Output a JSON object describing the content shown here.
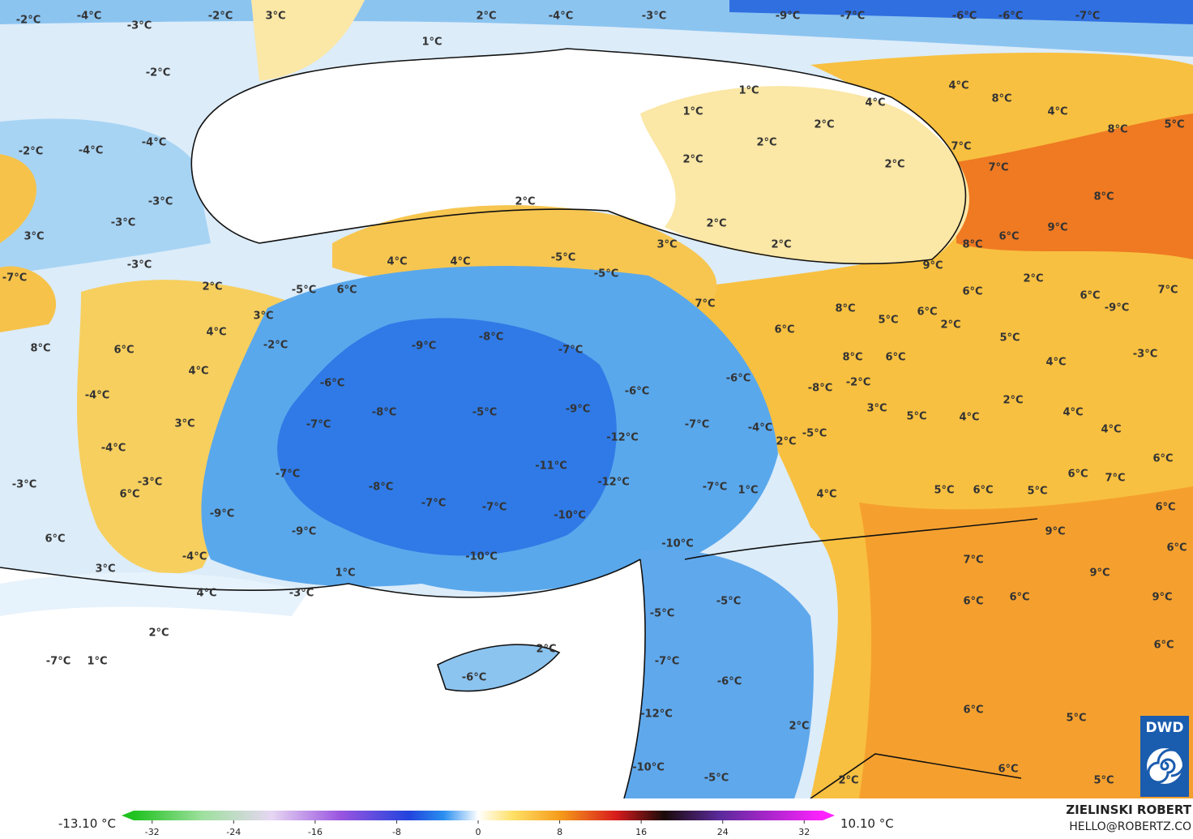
{
  "map": {
    "labels": [
      "-2°C",
      "-4°C",
      "-3°C",
      "-2°C",
      "3°C",
      "2°C",
      "1°C",
      "-4°C",
      "-3°C",
      "-9°C",
      "-7°C",
      "-6°C",
      "-6°C",
      "-7°C",
      "-2°C",
      "1°C",
      "1°C",
      "2°C",
      "2°C",
      "2°C",
      "2°C",
      "2°C",
      "2°C",
      "2°C",
      "3°C",
      "4°C",
      "4°C",
      "8°C",
      "4°C",
      "8°C",
      "5°C",
      "7°C",
      "7°C",
      "8°C",
      "9°C",
      "8°C",
      "6°C",
      "9°C",
      "2°C",
      "6°C",
      "6°C",
      "7°C",
      "-2°C",
      "-4°C",
      "-4°C",
      "-3°C",
      "-3°C",
      "3°C",
      "-3°C",
      "-7°C",
      "2°C",
      "-5°C",
      "6°C",
      "4°C",
      "4°C",
      "-5°C",
      "-5°C",
      "7°C",
      "3°C",
      "4°C",
      "6°C",
      "-2°C",
      "8°C",
      "4°C",
      "-4°C",
      "3°C",
      "-4°C",
      "-3°C",
      "-3°C",
      "6°C",
      "6°C",
      "-9°C",
      "-7°C",
      "-7°C",
      "-6°C",
      "-8°C",
      "-9°C",
      "-8°C",
      "-7°C",
      "-6°C",
      "-6°C",
      "-9°C",
      "-5°C",
      "-7°C",
      "-12°C",
      "-11°C",
      "-12°C",
      "-8°C",
      "-7°C",
      "-7°C",
      "-10°C",
      "-9°C",
      "-7°C",
      "1°C",
      "-4°C",
      "2°C",
      "-5°C",
      "4°C",
      "-10°C",
      "-10°C",
      "-4°C",
      "3°C",
      "1°C",
      "-3°C",
      "4°C",
      "2°C",
      "6°C",
      "8°C",
      "5°C",
      "6°C",
      "2°C",
      "5°C",
      "-9°C",
      "8°C",
      "6°C",
      "-2°C",
      "-8°C",
      "4°C",
      "-3°C",
      "3°C",
      "5°C",
      "4°C",
      "2°C",
      "4°C",
      "4°C",
      "6°C",
      "6°C",
      "7°C",
      "5°C",
      "6°C",
      "5°C",
      "6°C",
      "9°C",
      "6°C",
      "7°C",
      "9°C",
      "9°C",
      "6°C",
      "6°C",
      "-5°C",
      "-5°C",
      "6°C",
      "2°C",
      "-7°C",
      "1°C",
      "-7°C",
      "-6°C",
      "-6°C",
      "6°C",
      "-12°C",
      "5°C",
      "2°C",
      "-10°C",
      "6°C",
      "-5°C",
      "2°C",
      "5°C"
    ]
  },
  "colorbar": {
    "min_label": "-13.10 °C",
    "max_label": "10.10 °C",
    "range": [
      -35,
      35
    ],
    "ticks": [
      -32,
      -24,
      -16,
      -8,
      0,
      8,
      16,
      24,
      32
    ]
  },
  "credits": {
    "author": "ZIELINSKI ROBERT",
    "contact": "HELLO@ROBERTZ.CO",
    "logo": "DWD"
  }
}
